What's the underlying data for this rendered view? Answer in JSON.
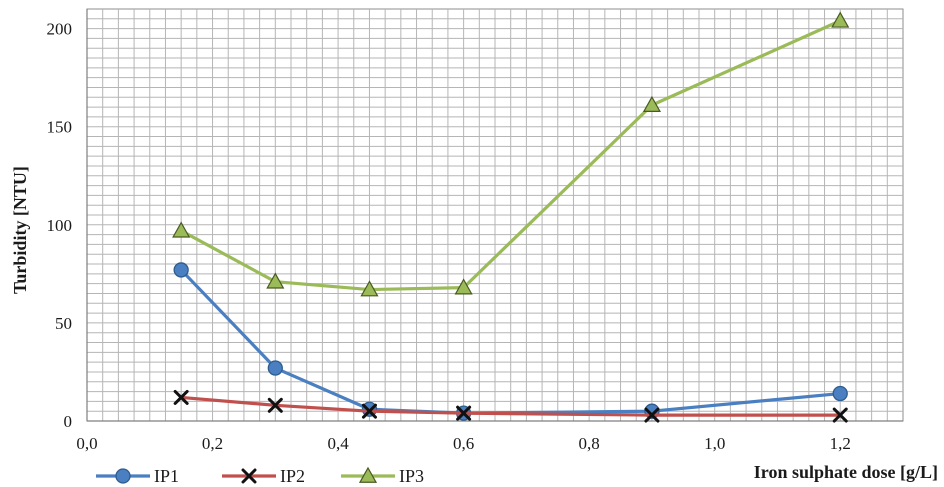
{
  "chart_data": {
    "type": "line",
    "title": "",
    "xlabel": "Iron sulphate dose [g/L]",
    "ylabel": "Turbidity [NTU]",
    "xlim": [
      0,
      1.3
    ],
    "ylim": [
      0,
      210
    ],
    "x_ticks": [
      0.0,
      0.2,
      0.4,
      0.6,
      0.8,
      1.0,
      1.2
    ],
    "x_tick_labels": [
      "0,0",
      "0,2",
      "0,4",
      "0,6",
      "0,8",
      "1,0",
      "1,2"
    ],
    "y_ticks": [
      0,
      50,
      100,
      150,
      200
    ],
    "y_tick_labels": [
      "0",
      "50",
      "100",
      "150",
      "200"
    ],
    "grid": true,
    "legend_position": "bottom-left",
    "x": [
      0.15,
      0.3,
      0.45,
      0.6,
      0.9,
      1.2
    ],
    "series": [
      {
        "name": "IP1",
        "color": "#4a7fc1",
        "marker": "circle",
        "values": [
          77,
          27,
          6,
          4,
          5,
          14
        ]
      },
      {
        "name": "IP2",
        "color": "#c0504d",
        "marker": "cross",
        "values": [
          12,
          8,
          5,
          4,
          3,
          3
        ]
      },
      {
        "name": "IP3",
        "color": "#9bbb59",
        "marker": "triangle",
        "values": [
          97,
          71,
          67,
          68,
          161,
          204
        ]
      }
    ]
  }
}
